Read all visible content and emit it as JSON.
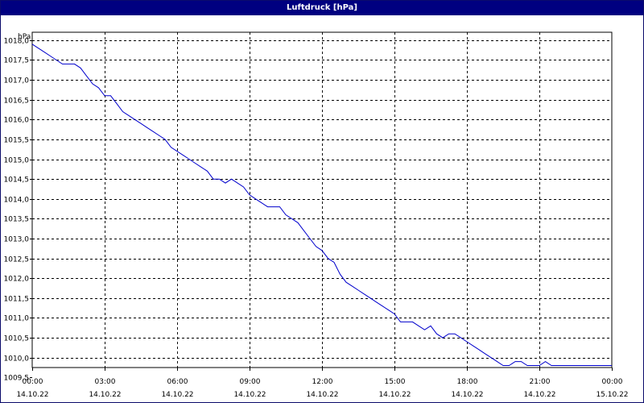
{
  "window": {
    "title": "Luftdruck [hPa]"
  },
  "chart_data": {
    "type": "line",
    "title": "Luftdruck [hPa]",
    "ylabel": "hPa",
    "xlabel": "",
    "xlim": [
      0,
      24
    ],
    "ylim": [
      1009.75,
      1018.2
    ],
    "grid": true,
    "legend": "none",
    "line_color": "#0000cc",
    "y_ticks": [
      "1009,5",
      "1010,0",
      "1010,5",
      "1011,0",
      "1011,5",
      "1012,0",
      "1012,5",
      "1013,0",
      "1013,5",
      "1014,0",
      "1014,5",
      "1015,0",
      "1015,5",
      "1016,0",
      "1016,5",
      "1017,0",
      "1017,5",
      "1018,0"
    ],
    "y_tick_values": [
      1009.5,
      1010.0,
      1010.5,
      1011.0,
      1011.5,
      1012.0,
      1012.5,
      1013.0,
      1013.5,
      1014.0,
      1014.5,
      1015.0,
      1015.5,
      1016.0,
      1016.5,
      1017.0,
      1017.5,
      1018.0
    ],
    "x_ticks": [
      {
        "time": "00:00",
        "date": "14.10.22"
      },
      {
        "time": "03:00",
        "date": "14.10.22"
      },
      {
        "time": "06:00",
        "date": "14.10.22"
      },
      {
        "time": "09:00",
        "date": "14.10.22"
      },
      {
        "time": "12:00",
        "date": "14.10.22"
      },
      {
        "time": "15:00",
        "date": "14.10.22"
      },
      {
        "time": "18:00",
        "date": "14.10.22"
      },
      {
        "time": "21:00",
        "date": "14.10.22"
      },
      {
        "time": "00:00",
        "date": "15.10.22"
      }
    ],
    "series": [
      {
        "x": [
          0,
          0.25,
          0.5,
          0.75,
          1.0,
          1.25,
          1.5,
          1.75,
          2.0,
          2.25,
          2.5,
          2.75,
          3.0,
          3.25,
          3.5,
          3.75,
          4.0,
          4.25,
          4.5,
          4.75,
          5.0,
          5.25,
          5.5,
          5.75,
          6.0,
          6.25,
          6.5,
          6.75,
          7.0,
          7.25,
          7.5,
          7.75,
          8.0,
          8.25,
          8.5,
          8.75,
          9.0,
          9.25,
          9.5,
          9.75,
          10.0,
          10.25,
          10.5,
          10.75,
          11.0,
          11.25,
          11.5,
          11.75,
          12.0,
          12.25,
          12.5,
          12.75,
          13.0,
          13.25,
          13.5,
          13.75,
          14.0,
          14.25,
          14.5,
          14.75,
          15.0,
          15.25,
          15.5,
          15.75,
          16.0,
          16.25,
          16.5,
          16.75,
          17.0,
          17.25,
          17.5,
          17.75,
          18.0,
          18.25,
          18.5,
          18.75,
          19.0,
          19.25,
          19.5,
          19.75,
          20.0,
          20.25,
          20.5,
          20.75,
          21.0,
          21.25,
          21.5,
          21.75,
          22.0,
          22.25,
          22.5,
          22.75,
          23.0,
          23.25,
          23.5,
          23.75,
          24.0
        ],
        "values": [
          1017.9,
          1017.8,
          1017.7,
          1017.6,
          1017.5,
          1017.4,
          1017.4,
          1017.4,
          1017.3,
          1017.1,
          1016.9,
          1016.8,
          1016.6,
          1016.6,
          1016.4,
          1016.2,
          1016.1,
          1016.0,
          1015.9,
          1015.8,
          1015.7,
          1015.6,
          1015.5,
          1015.3,
          1015.2,
          1015.1,
          1015.0,
          1014.9,
          1014.8,
          1014.7,
          1014.5,
          1014.5,
          1014.4,
          1014.5,
          1014.4,
          1014.3,
          1014.1,
          1014.0,
          1013.9,
          1013.8,
          1013.8,
          1013.8,
          1013.6,
          1013.5,
          1013.4,
          1013.2,
          1013.0,
          1012.8,
          1012.7,
          1012.5,
          1012.4,
          1012.1,
          1011.9,
          1011.8,
          1011.7,
          1011.6,
          1011.5,
          1011.4,
          1011.3,
          1011.2,
          1011.1,
          1010.9,
          1010.9,
          1010.9,
          1010.8,
          1010.7,
          1010.8,
          1010.6,
          1010.5,
          1010.6,
          1010.6,
          1010.5,
          1010.4,
          1010.3,
          1010.2,
          1010.1,
          1010.0,
          1009.9,
          1009.8,
          1009.8,
          1009.9,
          1009.9,
          1009.8,
          1009.8,
          1009.8,
          1009.9,
          1009.8,
          1009.8,
          1009.8,
          1009.8,
          1009.8,
          1009.8,
          1009.8,
          1009.8,
          1009.8,
          1009.8,
          1009.8
        ]
      }
    ]
  }
}
